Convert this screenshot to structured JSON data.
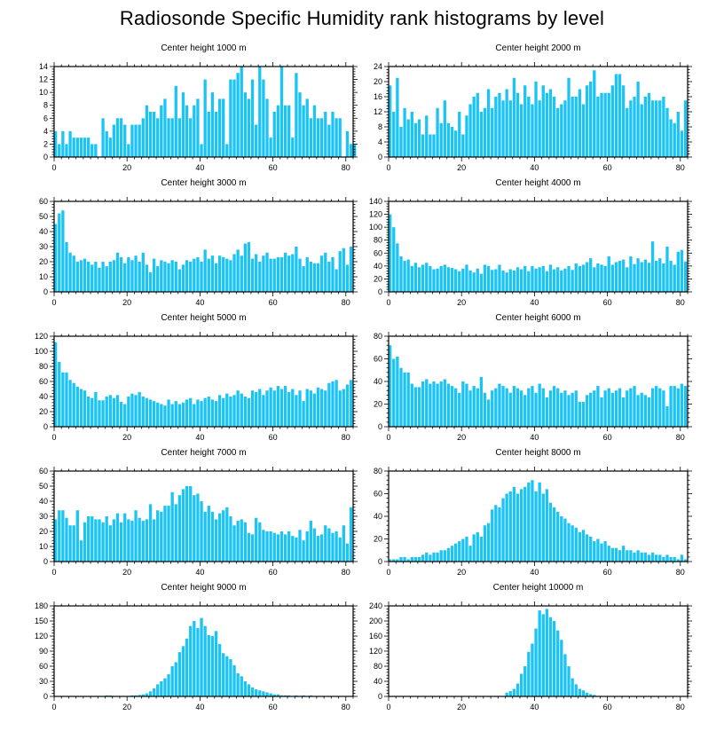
{
  "title": "Radiosonde Specific Humidity rank histograms by level",
  "bar_color": "#1cc3f5",
  "chart_data": [
    {
      "type": "bar",
      "title": "Center height 1000 m",
      "xlim": [
        0,
        82
      ],
      "ylim": [
        0,
        14
      ],
      "xticks": [
        0,
        20,
        40,
        60,
        80
      ],
      "yticks": [
        0,
        2,
        4,
        6,
        8,
        10,
        12,
        14
      ],
      "values": [
        4,
        2,
        4,
        2,
        4,
        3,
        3,
        3,
        3,
        3,
        2,
        2,
        0,
        6,
        4,
        3,
        5,
        6,
        6,
        5,
        2,
        5,
        5,
        5,
        6,
        8,
        7,
        7,
        6,
        8,
        9,
        6,
        6,
        11,
        6,
        10,
        8,
        6,
        8,
        9,
        2,
        12,
        7,
        10,
        7,
        9,
        9,
        2,
        12,
        12,
        13,
        14,
        10,
        9,
        12,
        5,
        14,
        12,
        9,
        3,
        7,
        8,
        14,
        8,
        8,
        3,
        13,
        10,
        8,
        9,
        6,
        8,
        6,
        6,
        7,
        5,
        7,
        6,
        6,
        0,
        4,
        2,
        2
      ]
    },
    {
      "type": "bar",
      "title": "Center height 2000 m",
      "xlim": [
        0,
        82
      ],
      "ylim": [
        0,
        24
      ],
      "xticks": [
        0,
        20,
        40,
        60,
        80
      ],
      "yticks": [
        0,
        4,
        8,
        12,
        16,
        20,
        24
      ],
      "values": [
        19,
        12,
        21,
        8,
        13,
        10,
        12,
        9,
        10,
        6,
        11,
        6,
        6,
        13,
        9,
        15,
        9,
        8,
        7,
        12,
        6,
        11,
        14,
        16,
        17,
        12,
        13,
        18,
        13,
        16,
        17,
        15,
        18,
        15,
        21,
        17,
        14,
        19,
        16,
        14,
        20,
        15,
        19,
        17,
        18,
        16,
        13,
        14,
        15,
        21,
        16,
        16,
        18,
        14,
        19,
        20,
        23,
        16,
        17,
        17,
        17,
        19,
        22,
        22,
        19,
        13,
        15,
        16,
        20,
        14,
        16,
        17,
        15,
        15,
        15,
        16,
        13,
        10,
        9,
        12,
        7,
        15
      ]
    },
    {
      "type": "bar",
      "title": "Center height 3000 m",
      "xlim": [
        0,
        82
      ],
      "ylim": [
        0,
        60
      ],
      "xticks": [
        0,
        20,
        40,
        60,
        80
      ],
      "yticks": [
        0,
        10,
        20,
        30,
        40,
        50,
        60
      ],
      "values": [
        45,
        52,
        54,
        33,
        26,
        24,
        20,
        21,
        22,
        20,
        18,
        20,
        16,
        20,
        17,
        20,
        21,
        26,
        23,
        19,
        23,
        21,
        24,
        20,
        26,
        18,
        13,
        22,
        17,
        21,
        20,
        19,
        21,
        20,
        15,
        18,
        21,
        20,
        22,
        23,
        20,
        28,
        22,
        24,
        19,
        24,
        23,
        22,
        21,
        25,
        28,
        24,
        32,
        33,
        22,
        25,
        20,
        24,
        26,
        22,
        22,
        23,
        23,
        26,
        24,
        25,
        30,
        22,
        17,
        23,
        20,
        19,
        19,
        24,
        26,
        20,
        23,
        15,
        27,
        29,
        18,
        30
      ]
    },
    {
      "type": "bar",
      "title": "Center height 4000 m",
      "xlim": [
        0,
        82
      ],
      "ylim": [
        0,
        140
      ],
      "xticks": [
        0,
        20,
        40,
        60,
        80
      ],
      "yticks": [
        0,
        20,
        40,
        60,
        80,
        100,
        120,
        140
      ],
      "values": [
        120,
        100,
        75,
        55,
        48,
        50,
        40,
        45,
        38,
        42,
        45,
        40,
        35,
        36,
        40,
        42,
        38,
        37,
        35,
        32,
        36,
        42,
        33,
        30,
        36,
        28,
        42,
        40,
        34,
        35,
        42,
        33,
        30,
        35,
        33,
        38,
        35,
        40,
        32,
        40,
        36,
        38,
        40,
        32,
        42,
        35,
        38,
        33,
        36,
        40,
        34,
        44,
        40,
        42,
        46,
        52,
        38,
        44,
        42,
        40,
        55,
        42,
        46,
        48,
        50,
        38,
        55,
        43,
        52,
        46,
        50,
        45,
        78,
        48,
        52,
        44,
        70,
        48,
        42,
        62,
        65,
        47
      ]
    },
    {
      "type": "bar",
      "title": "Center height 5000 m",
      "xlim": [
        0,
        82
      ],
      "ylim": [
        0,
        120
      ],
      "xticks": [
        0,
        20,
        40,
        60,
        80
      ],
      "yticks": [
        0,
        20,
        40,
        60,
        80,
        100,
        120
      ],
      "values": [
        112,
        86,
        72,
        72,
        62,
        58,
        53,
        50,
        48,
        40,
        38,
        46,
        35,
        35,
        40,
        42,
        38,
        42,
        33,
        30,
        40,
        44,
        42,
        46,
        40,
        38,
        36,
        34,
        32,
        30,
        28,
        36,
        30,
        34,
        30,
        32,
        36,
        38,
        30,
        36,
        34,
        38,
        40,
        36,
        34,
        42,
        38,
        44,
        40,
        42,
        48,
        44,
        40,
        38,
        48,
        46,
        50,
        42,
        48,
        52,
        48,
        54,
        50,
        54,
        46,
        50,
        42,
        48,
        34,
        50,
        48,
        44,
        52,
        50,
        48,
        58,
        60,
        62,
        48,
        50,
        56,
        62
      ]
    },
    {
      "type": "bar",
      "title": "Center height 6000 m",
      "xlim": [
        0,
        82
      ],
      "ylim": [
        0,
        80
      ],
      "xticks": [
        0,
        20,
        40,
        60,
        80
      ],
      "yticks": [
        0,
        20,
        40,
        60,
        80
      ],
      "values": [
        72,
        60,
        62,
        52,
        48,
        48,
        38,
        35,
        35,
        40,
        42,
        38,
        40,
        38,
        40,
        42,
        38,
        36,
        34,
        30,
        40,
        38,
        32,
        36,
        34,
        44,
        30,
        24,
        32,
        34,
        38,
        36,
        34,
        30,
        36,
        34,
        32,
        28,
        34,
        36,
        30,
        38,
        34,
        26,
        32,
        36,
        34,
        30,
        32,
        28,
        30,
        32,
        22,
        22,
        28,
        30,
        32,
        36,
        26,
        32,
        34,
        30,
        32,
        34,
        26,
        32,
        34,
        36,
        28,
        30,
        28,
        26,
        34,
        36,
        34,
        32,
        18,
        36,
        36,
        34,
        38,
        36
      ]
    },
    {
      "type": "bar",
      "title": "Center height 7000 m",
      "xlim": [
        0,
        82
      ],
      "ylim": [
        0,
        60
      ],
      "xticks": [
        0,
        20,
        40,
        60,
        80
      ],
      "yticks": [
        0,
        10,
        20,
        30,
        40,
        50,
        60
      ],
      "values": [
        28,
        34,
        34,
        29,
        24,
        24,
        34,
        14,
        26,
        30,
        30,
        28,
        28,
        26,
        30,
        24,
        28,
        32,
        26,
        32,
        28,
        27,
        34,
        29,
        27,
        28,
        38,
        28,
        34,
        33,
        37,
        37,
        46,
        38,
        44,
        48,
        50,
        50,
        44,
        45,
        40,
        33,
        37,
        33,
        28,
        32,
        34,
        36,
        30,
        24,
        27,
        28,
        26,
        19,
        18,
        29,
        26,
        21,
        20,
        20,
        19,
        18,
        20,
        18,
        20,
        17,
        16,
        21,
        14,
        20,
        27,
        22,
        17,
        18,
        24,
        22,
        19,
        20,
        16,
        24,
        12,
        36
      ]
    },
    {
      "type": "bar",
      "title": "Center height 8000 m",
      "xlim": [
        0,
        82
      ],
      "ylim": [
        0,
        80
      ],
      "xticks": [
        0,
        20,
        40,
        60,
        80
      ],
      "yticks": [
        0,
        20,
        40,
        60,
        80
      ],
      "values": [
        2,
        2,
        2,
        4,
        4,
        2,
        4,
        4,
        4,
        6,
        8,
        6,
        8,
        8,
        10,
        10,
        12,
        14,
        16,
        18,
        20,
        22,
        14,
        24,
        26,
        22,
        32,
        34,
        46,
        50,
        48,
        56,
        60,
        62,
        66,
        60,
        64,
        66,
        70,
        72,
        62,
        70,
        60,
        64,
        52,
        48,
        44,
        40,
        38,
        34,
        32,
        30,
        26,
        28,
        24,
        22,
        18,
        20,
        16,
        18,
        14,
        12,
        12,
        10,
        14,
        10,
        10,
        8,
        10,
        8,
        8,
        6,
        8,
        6,
        6,
        4,
        6,
        4,
        4,
        2,
        6,
        2
      ]
    },
    {
      "type": "bar",
      "title": "Center height 9000 m",
      "xlim": [
        0,
        82
      ],
      "ylim": [
        0,
        180
      ],
      "xticks": [
        0,
        20,
        40,
        60,
        80
      ],
      "yticks": [
        0,
        30,
        60,
        90,
        120,
        150,
        180
      ],
      "values": [
        0,
        0,
        0,
        0,
        0,
        0,
        0,
        0,
        0,
        0,
        0,
        0,
        0,
        0,
        2,
        2,
        0,
        0,
        0,
        0,
        0,
        2,
        2,
        3,
        4,
        6,
        10,
        16,
        24,
        30,
        36,
        44,
        60,
        68,
        88,
        100,
        115,
        140,
        150,
        136,
        156,
        140,
        122,
        120,
        130,
        104,
        86,
        80,
        74,
        62,
        46,
        40,
        30,
        24,
        18,
        14,
        12,
        10,
        8,
        6,
        4,
        4,
        2,
        2,
        2,
        0,
        2,
        0,
        2,
        0,
        2,
        0,
        0,
        0,
        0,
        0,
        0,
        0,
        0,
        0,
        0,
        0
      ]
    },
    {
      "type": "bar",
      "title": "Center height 10000 m",
      "xlim": [
        0,
        82
      ],
      "ylim": [
        0,
        240
      ],
      "xticks": [
        0,
        20,
        40,
        60,
        80
      ],
      "yticks": [
        0,
        40,
        80,
        120,
        160,
        200,
        240
      ],
      "values": [
        0,
        0,
        0,
        0,
        0,
        0,
        0,
        0,
        0,
        0,
        0,
        0,
        0,
        0,
        0,
        0,
        0,
        0,
        0,
        0,
        0,
        0,
        0,
        0,
        0,
        0,
        0,
        0,
        0,
        0,
        0,
        0,
        10,
        14,
        20,
        34,
        60,
        80,
        118,
        140,
        180,
        228,
        218,
        232,
        210,
        200,
        175,
        150,
        112,
        80,
        48,
        32,
        20,
        16,
        10,
        6,
        4,
        0,
        0,
        0,
        0,
        0,
        0,
        0,
        0,
        0,
        0,
        0,
        0,
        0,
        0,
        0,
        0,
        0,
        0,
        0,
        0,
        0,
        0,
        0,
        0,
        0
      ]
    }
  ]
}
